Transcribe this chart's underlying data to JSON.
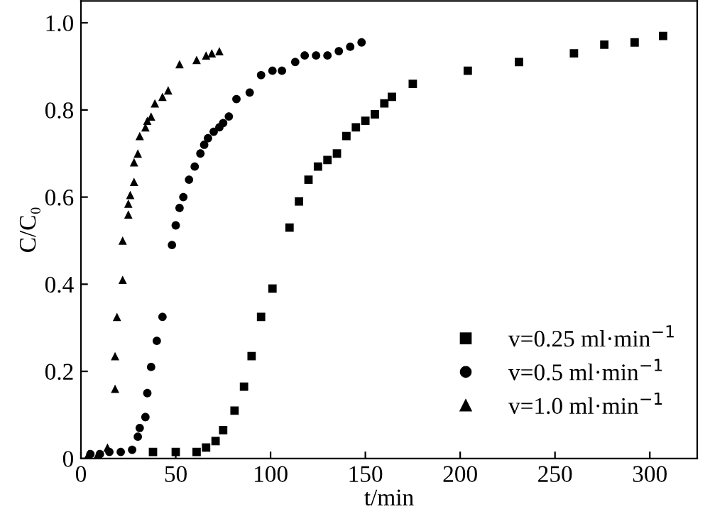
{
  "chart_data": {
    "type": "scatter",
    "xlabel": "t/min",
    "ylabel": "C/C₀",
    "xlim": [
      0,
      325
    ],
    "ylim": [
      0,
      1.05
    ],
    "xticks": [
      0,
      50,
      100,
      150,
      200,
      250,
      300
    ],
    "yticks": [
      {
        "value": 0,
        "label": "0"
      },
      0.2,
      0.4,
      0.6,
      0.8,
      {
        "value": 1,
        "label": "1.0"
      }
    ],
    "grid": false,
    "legend": "lower right",
    "series": [
      {
        "name": "v=0.25 ml·min$^{−1}$",
        "color": "#000000",
        "marker": "square",
        "x": [
          38,
          50,
          61,
          66,
          71,
          75,
          81,
          86,
          90,
          95,
          101,
          110,
          115,
          120,
          125,
          130,
          135,
          140,
          145,
          150,
          155,
          160,
          164,
          175,
          204,
          231,
          260,
          276,
          292,
          307
        ],
        "values": [
          0.015,
          0.015,
          0.015,
          0.025,
          0.04,
          0.065,
          0.11,
          0.165,
          0.235,
          0.325,
          0.39,
          0.53,
          0.59,
          0.64,
          0.67,
          0.685,
          0.7,
          0.74,
          0.76,
          0.775,
          0.79,
          0.815,
          0.83,
          0.86,
          0.89,
          0.91,
          0.93,
          0.95,
          0.955,
          0.97
        ]
      },
      {
        "name": "v=0.5 ml·min$^{−1}$",
        "color": "#000000",
        "marker": "circle",
        "x": [
          5,
          10,
          15,
          21,
          27,
          30,
          31,
          34,
          35,
          37,
          40,
          43,
          48,
          50,
          52,
          54,
          57,
          60,
          63,
          65,
          67,
          70,
          73,
          75,
          78,
          82,
          89,
          95,
          101,
          106,
          113,
          118,
          124,
          130,
          136,
          142,
          148
        ],
        "values": [
          0.01,
          0.01,
          0.015,
          0.015,
          0.02,
          0.05,
          0.07,
          0.095,
          0.15,
          0.21,
          0.27,
          0.325,
          0.49,
          0.535,
          0.575,
          0.6,
          0.64,
          0.67,
          0.7,
          0.72,
          0.735,
          0.75,
          0.76,
          0.77,
          0.785,
          0.825,
          0.84,
          0.88,
          0.89,
          0.89,
          0.91,
          0.925,
          0.925,
          0.925,
          0.935,
          0.945,
          0.955
        ]
      },
      {
        "name": "v=1.0 ml·min$^{−1}$",
        "color": "#000000",
        "marker": "triangle",
        "x": [
          4,
          9,
          14,
          18,
          18,
          19,
          22,
          22,
          25,
          25,
          26,
          28,
          28,
          30,
          31,
          34,
          35,
          37,
          39,
          43,
          46,
          52,
          61,
          66,
          69,
          73
        ],
        "values": [
          0.01,
          0.01,
          0.025,
          0.16,
          0.235,
          0.325,
          0.41,
          0.5,
          0.56,
          0.585,
          0.605,
          0.635,
          0.68,
          0.7,
          0.74,
          0.76,
          0.775,
          0.785,
          0.815,
          0.83,
          0.845,
          0.905,
          0.915,
          0.925,
          0.93,
          0.935
        ]
      }
    ]
  }
}
